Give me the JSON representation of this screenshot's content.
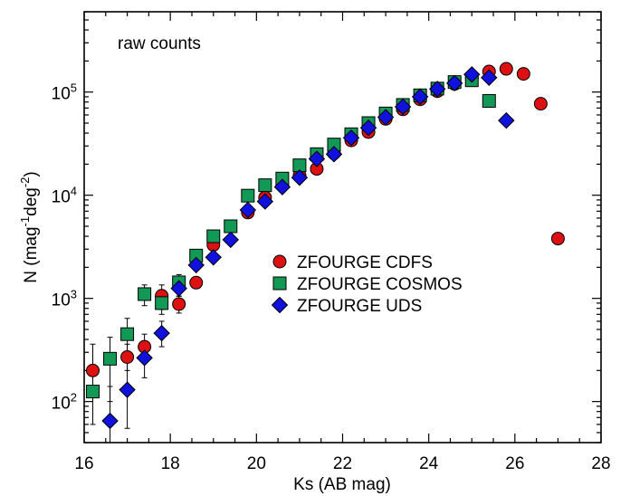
{
  "chart_data": {
    "type": "scatter",
    "annotation": "raw counts",
    "xlabel": "Ks (AB mag)",
    "ylabel_parts": [
      "N (mag",
      "-1",
      "deg",
      "-2",
      ")"
    ],
    "xlim": [
      16,
      28
    ],
    "ylim": [
      40,
      600000
    ],
    "yscale": "log",
    "x_ticks": [
      16,
      18,
      20,
      22,
      24,
      26,
      28
    ],
    "y_ticks": [
      {
        "value": 100,
        "base": "10",
        "exp": "2"
      },
      {
        "value": 1000,
        "base": "10",
        "exp": "3"
      },
      {
        "value": 10000,
        "base": "10",
        "exp": "4"
      },
      {
        "value": 100000,
        "base": "10",
        "exp": "5"
      }
    ],
    "legend_placement": "center-right",
    "series": [
      {
        "name": "ZFOURGE CDFS",
        "marker": "circle",
        "color": "#dd1111",
        "points": [
          {
            "x": 16.2,
            "y": 200,
            "lo": 110,
            "hi": 360
          },
          {
            "x": 17.0,
            "y": 270,
            "lo": 200,
            "hi": 360
          },
          {
            "x": 17.4,
            "y": 340,
            "lo": 260,
            "hi": 450
          },
          {
            "x": 17.8,
            "y": 1060,
            "lo": 780,
            "hi": 1350
          },
          {
            "x": 18.2,
            "y": 880,
            "lo": 720,
            "hi": 1050
          },
          {
            "x": 18.6,
            "y": 1420,
            "lo": 1250,
            "hi": 1600
          },
          {
            "x": 19.0,
            "y": 3300
          },
          {
            "x": 19.8,
            "y": 6800
          },
          {
            "x": 20.2,
            "y": 9500
          },
          {
            "x": 20.6,
            "y": 12500
          },
          {
            "x": 21.0,
            "y": 15500
          },
          {
            "x": 21.4,
            "y": 18000
          },
          {
            "x": 21.8,
            "y": 25500
          },
          {
            "x": 22.2,
            "y": 34000
          },
          {
            "x": 22.6,
            "y": 41000
          },
          {
            "x": 23.0,
            "y": 55000
          },
          {
            "x": 23.4,
            "y": 68000
          },
          {
            "x": 23.8,
            "y": 85000
          },
          {
            "x": 24.2,
            "y": 102000
          },
          {
            "x": 24.6,
            "y": 120000
          },
          {
            "x": 25.0,
            "y": 135000
          },
          {
            "x": 25.4,
            "y": 158000
          },
          {
            "x": 25.8,
            "y": 168000
          },
          {
            "x": 26.2,
            "y": 150000
          },
          {
            "x": 26.6,
            "y": 77000
          },
          {
            "x": 27.0,
            "y": 3800
          }
        ]
      },
      {
        "name": "ZFOURGE COSMOS",
        "marker": "square",
        "color": "#119955",
        "points": [
          {
            "x": 16.2,
            "y": 125,
            "lo": 60,
            "hi": 200
          },
          {
            "x": 16.6,
            "y": 260,
            "lo": 100,
            "hi": 420
          },
          {
            "x": 17.0,
            "y": 450,
            "lo": 300,
            "hi": 640
          },
          {
            "x": 17.4,
            "y": 1100,
            "lo": 850,
            "hi": 1350
          },
          {
            "x": 17.8,
            "y": 900,
            "lo": 700,
            "hi": 1150
          },
          {
            "x": 18.2,
            "y": 1430,
            "lo": 1200,
            "hi": 1700
          },
          {
            "x": 18.6,
            "y": 2600
          },
          {
            "x": 19.0,
            "y": 4000
          },
          {
            "x": 19.4,
            "y": 5000
          },
          {
            "x": 19.8,
            "y": 9900
          },
          {
            "x": 20.2,
            "y": 12500
          },
          {
            "x": 20.6,
            "y": 14500
          },
          {
            "x": 21.0,
            "y": 19500
          },
          {
            "x": 21.4,
            "y": 25000
          },
          {
            "x": 21.8,
            "y": 31000
          },
          {
            "x": 22.2,
            "y": 39000
          },
          {
            "x": 22.6,
            "y": 50000
          },
          {
            "x": 23.0,
            "y": 62000
          },
          {
            "x": 23.4,
            "y": 75000
          },
          {
            "x": 23.8,
            "y": 93000
          },
          {
            "x": 24.2,
            "y": 108000
          },
          {
            "x": 24.6,
            "y": 125000
          },
          {
            "x": 25.0,
            "y": 130000
          },
          {
            "x": 25.4,
            "y": 82000
          }
        ]
      },
      {
        "name": "ZFOURGE UDS",
        "marker": "diamond",
        "color": "#1111dd",
        "points": [
          {
            "x": 16.6,
            "y": 65,
            "lo": 40,
            "hi": 140
          },
          {
            "x": 17.0,
            "y": 130,
            "lo": 55,
            "hi": 300
          },
          {
            "x": 17.4,
            "y": 265,
            "lo": 170,
            "hi": 380
          },
          {
            "x": 17.8,
            "y": 460,
            "lo": 340,
            "hi": 600
          },
          {
            "x": 18.2,
            "y": 1250,
            "lo": 1050,
            "hi": 1450
          },
          {
            "x": 18.6,
            "y": 2100
          },
          {
            "x": 19.0,
            "y": 2500
          },
          {
            "x": 19.4,
            "y": 3700
          },
          {
            "x": 19.8,
            "y": 7200
          },
          {
            "x": 20.2,
            "y": 8700
          },
          {
            "x": 20.6,
            "y": 12000
          },
          {
            "x": 21.0,
            "y": 14800
          },
          {
            "x": 21.4,
            "y": 22500
          },
          {
            "x": 21.8,
            "y": 25000
          },
          {
            "x": 22.2,
            "y": 36000
          },
          {
            "x": 22.6,
            "y": 45000
          },
          {
            "x": 23.0,
            "y": 57000
          },
          {
            "x": 23.4,
            "y": 72000
          },
          {
            "x": 23.8,
            "y": 90000
          },
          {
            "x": 24.2,
            "y": 107000
          },
          {
            "x": 24.6,
            "y": 122000
          },
          {
            "x": 25.0,
            "y": 148000
          },
          {
            "x": 25.4,
            "y": 138000
          },
          {
            "x": 25.8,
            "y": 53000
          }
        ]
      }
    ]
  }
}
